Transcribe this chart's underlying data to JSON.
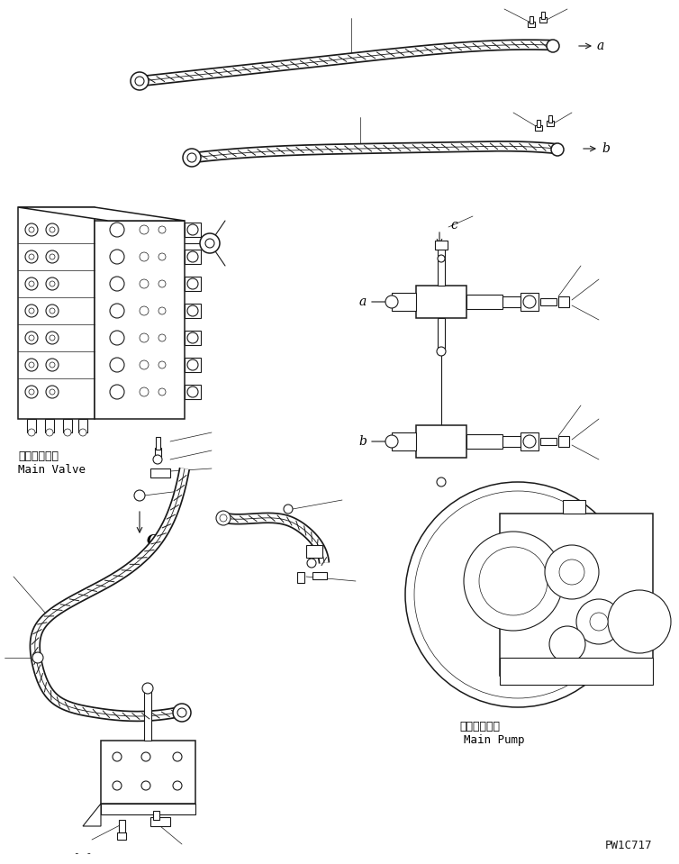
{
  "bg_color": "#ffffff",
  "line_color": "#1a1a1a",
  "figsize": [
    7.54,
    9.59
  ],
  "dpi": 100,
  "main_valve_label_jp": "メインバルブ",
  "main_valve_label_en": "Main Valve",
  "main_pump_label_jp": "メインポンプ",
  "main_pump_label_en": "Main Pump",
  "part_number": "PW1C717"
}
